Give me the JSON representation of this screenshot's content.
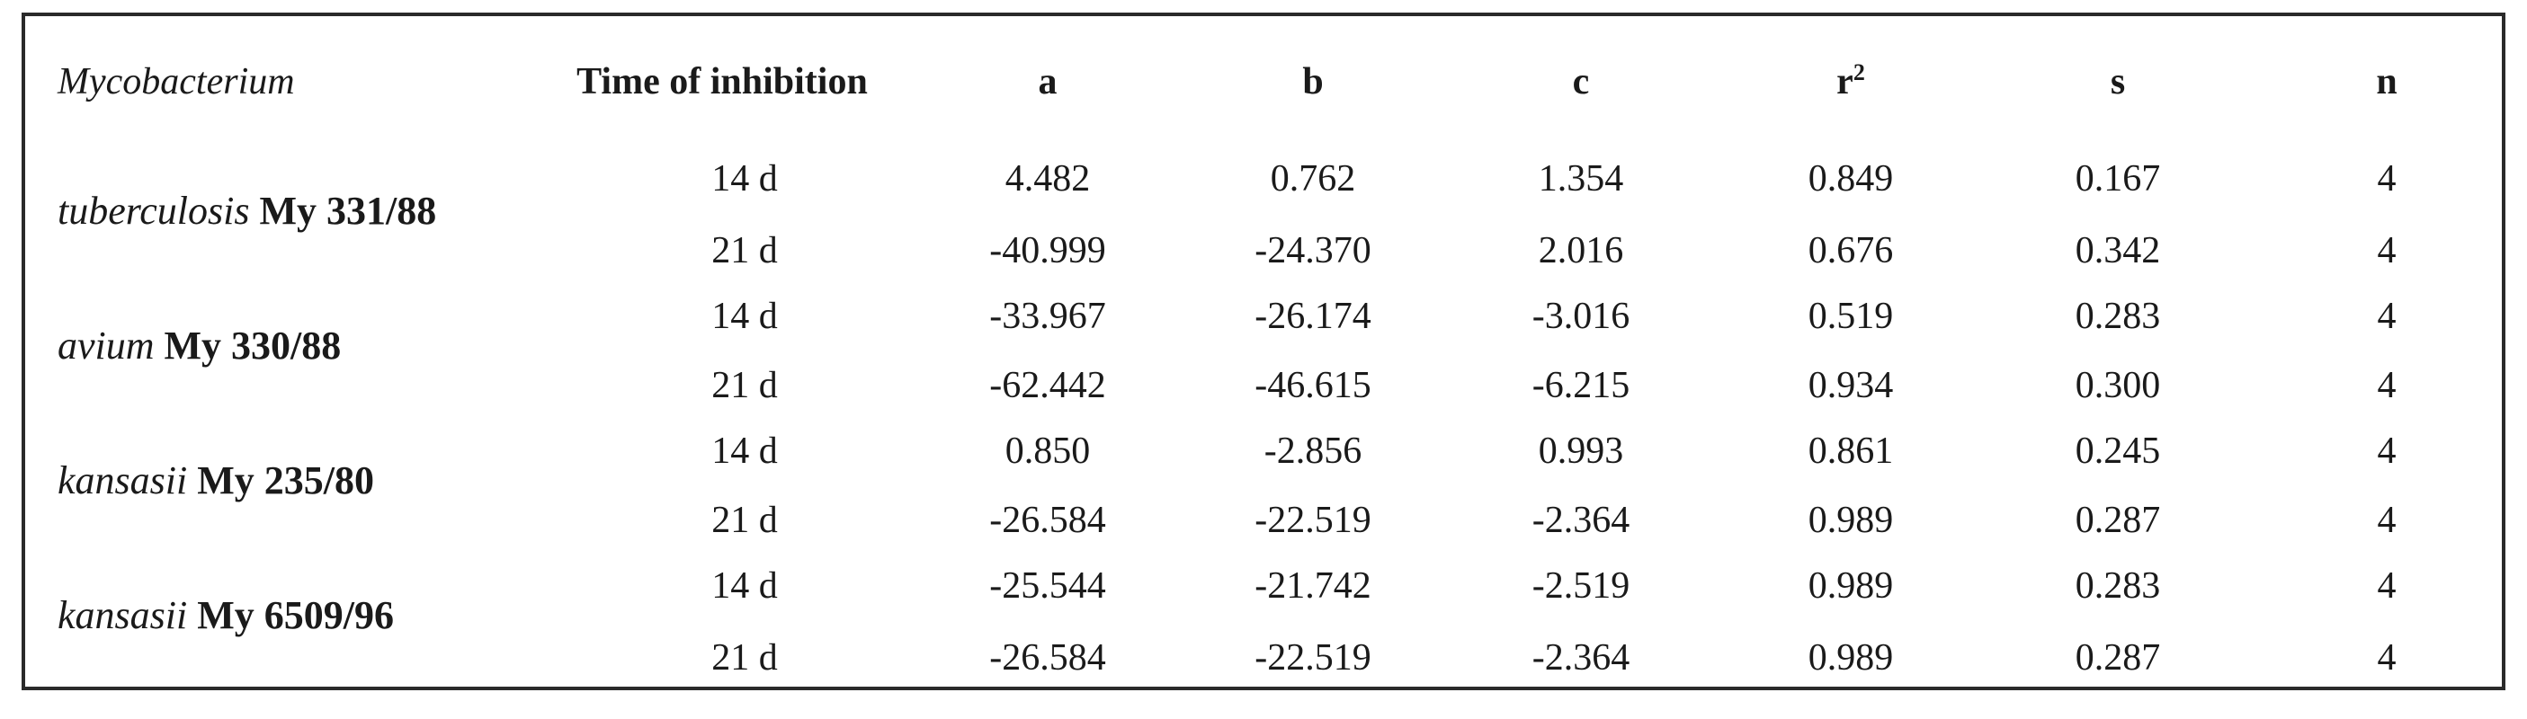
{
  "table": {
    "headers": {
      "organism": "Mycobacterium",
      "time": "Time of inhibition",
      "a": "a",
      "b": "b",
      "c": "c",
      "r2_base": "r",
      "r2_sup": "2",
      "s": "s",
      "n": "n"
    },
    "groups": [
      {
        "species": "tuberculosis",
        "strain": " My 331/88",
        "rows": [
          {
            "time": "14 d",
            "a": "4.482",
            "b": "0.762",
            "c": "1.354",
            "r2": "0.849",
            "s": "0.167",
            "n": "4"
          },
          {
            "time": "21 d",
            "a": "-40.999",
            "b": "-24.370",
            "c": "2.016",
            "r2": "0.676",
            "s": "0.342",
            "n": "4"
          }
        ]
      },
      {
        "species": "avium",
        "strain": " My 330/88",
        "rows": [
          {
            "time": "14 d",
            "a": "-33.967",
            "b": "-26.174",
            "c": "-3.016",
            "r2": "0.519",
            "s": "0.283",
            "n": "4"
          },
          {
            "time": "21 d",
            "a": "-62.442",
            "b": "-46.615",
            "c": "-6.215",
            "r2": "0.934",
            "s": "0.300",
            "n": "4"
          }
        ]
      },
      {
        "species": "kansasii",
        "strain": " My 235/80",
        "rows": [
          {
            "time": "14 d",
            "a": "0.850",
            "b": "-2.856",
            "c": "0.993",
            "r2": "0.861",
            "s": "0.245",
            "n": "4"
          },
          {
            "time": "21 d",
            "a": "-26.584",
            "b": "-22.519",
            "c": "-2.364",
            "r2": "0.989",
            "s": "0.287",
            "n": "4"
          }
        ]
      },
      {
        "species": "kansasii",
        "strain": " My 6509/96",
        "rows": [
          {
            "time": "14 d",
            "a": "-25.544",
            "b": "-21.742",
            "c": "-2.519",
            "r2": "0.989",
            "s": "0.283",
            "n": "4"
          },
          {
            "time": "21 d",
            "a": "-26.584",
            "b": "-22.519",
            "c": "-2.364",
            "r2": "0.989",
            "s": "0.287",
            "n": "4"
          }
        ]
      }
    ]
  }
}
